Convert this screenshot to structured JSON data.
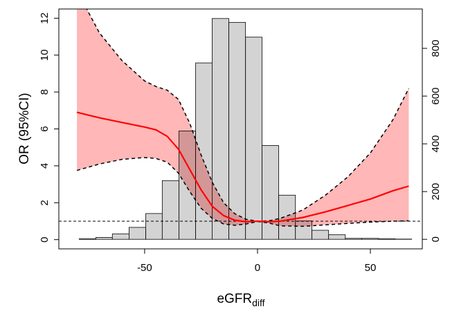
{
  "chart_data": {
    "type": "histogram",
    "ylabel": "OR (95%CI)",
    "xlabel": "eGFR",
    "xlabel_subscript": "diff",
    "xlim": [
      -88,
      73
    ],
    "xticks": [
      -50,
      0,
      50
    ],
    "ylim": [
      -0.5,
      12.5
    ],
    "yticks": [
      0,
      2,
      4,
      6,
      8,
      10,
      12
    ],
    "y2lim": [
      -40,
      965
    ],
    "y2ticks": [
      0,
      200,
      400,
      600,
      800
    ],
    "reference_line": 1,
    "histogram": {
      "axis": "y2",
      "color": "#d3d3d3",
      "bins": [
        -79,
        -71.6,
        -64.3,
        -56.9,
        -49.5,
        -42.2,
        -34.8,
        -27.4,
        -20.1,
        -12.7,
        -5.3,
        2.0,
        9.4,
        16.8,
        24.1,
        31.5,
        38.9,
        46.2,
        53.6,
        61.0,
        68.3
      ],
      "counts": [
        2,
        8,
        23,
        50,
        108,
        246,
        454,
        739,
        925,
        909,
        847,
        393,
        185,
        77,
        38,
        19,
        4,
        4,
        2,
        1
      ]
    },
    "x": [
      -80,
      -70,
      -60,
      -50,
      -45,
      -40,
      -35,
      -30,
      -25,
      -20,
      -15,
      -10,
      -5,
      0,
      5,
      10,
      20,
      30,
      40,
      50,
      60,
      67
    ],
    "line": {
      "color": "#ff0000",
      "values": [
        6.9,
        6.6,
        6.35,
        6.1,
        5.95,
        5.6,
        4.9,
        3.8,
        2.7,
        1.8,
        1.3,
        1.05,
        0.97,
        1.0,
        0.97,
        1.0,
        1.2,
        1.5,
        1.85,
        2.2,
        2.65,
        2.9
      ]
    },
    "band": {
      "color": "#ffaaaa",
      "upper": [
        13.5,
        11.2,
        9.7,
        8.6,
        8.3,
        8.1,
        7.6,
        6.3,
        4.6,
        3.1,
        2.0,
        1.4,
        1.1,
        1.0,
        1.02,
        1.15,
        1.6,
        2.4,
        3.4,
        4.7,
        6.5,
        8.2
      ],
      "lower": [
        3.75,
        4.1,
        4.35,
        4.45,
        4.4,
        4.2,
        3.6,
        2.6,
        1.7,
        1.15,
        0.85,
        0.78,
        0.85,
        0.98,
        0.9,
        0.75,
        0.72,
        0.8,
        0.88,
        0.95,
        1.0,
        1.02
      ]
    }
  }
}
